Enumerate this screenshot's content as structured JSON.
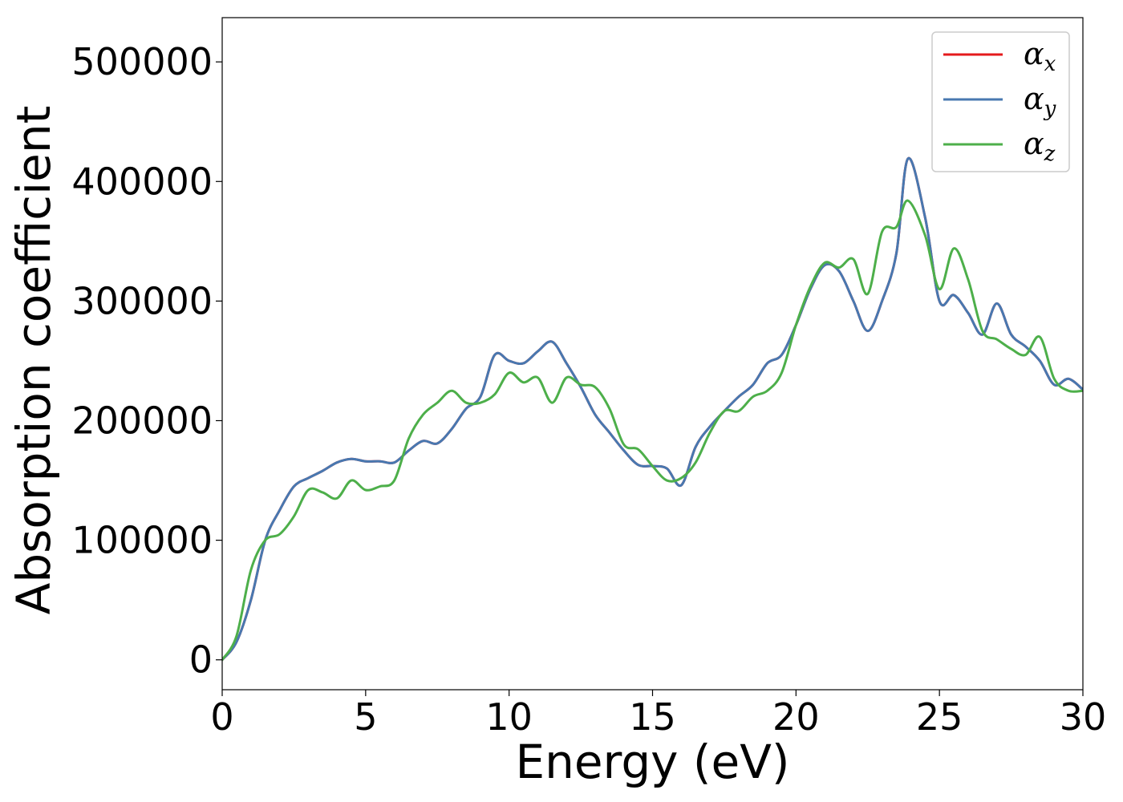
{
  "chart_data": {
    "type": "line",
    "title": "",
    "xlabel": "Energy (eV)",
    "ylabel": "Absorption coefficient",
    "xlim": [
      0,
      30
    ],
    "ylim": [
      -25000,
      537000
    ],
    "xticks": [
      0,
      5,
      10,
      15,
      20,
      25,
      30
    ],
    "yticks": [
      0,
      100000,
      200000,
      300000,
      400000,
      500000
    ],
    "xtick_labels": [
      "0",
      "5",
      "10",
      "15",
      "20",
      "25",
      "30"
    ],
    "ytick_labels": [
      "0",
      "100000",
      "200000",
      "300000",
      "400000",
      "500000"
    ],
    "grid": false,
    "legend_position": "top-right",
    "series": [
      {
        "name": "α",
        "subscript": "x",
        "color": "#e41a1c",
        "x": [
          0,
          0.5,
          1.0,
          1.5,
          2.0,
          2.5,
          3.0,
          3.5,
          4.0,
          4.5,
          5.0,
          5.5,
          6.0,
          6.5,
          7.0,
          7.5,
          8.0,
          8.5,
          9.0,
          9.5,
          10.0,
          10.5,
          11.0,
          11.5,
          12.0,
          12.5,
          13.0,
          13.5,
          14.0,
          14.5,
          15.0,
          15.5,
          16.0,
          16.5,
          17.0,
          17.5,
          18.0,
          18.5,
          19.0,
          19.5,
          20.0,
          20.5,
          21.0,
          21.5,
          22.0,
          22.5,
          23.0,
          23.5,
          23.9,
          24.5,
          25.0,
          25.5,
          26.0,
          26.5,
          27.0,
          27.5,
          28.0,
          28.5,
          29.0,
          29.5,
          30.0
        ],
        "y": [
          0,
          15000,
          50000,
          100000,
          125000,
          145000,
          152000,
          158000,
          165000,
          168000,
          166000,
          166000,
          165000,
          175000,
          183000,
          181000,
          193000,
          210000,
          220000,
          255000,
          250000,
          248000,
          258000,
          266000,
          248000,
          228000,
          205000,
          190000,
          175000,
          163000,
          162000,
          160000,
          146000,
          178000,
          195000,
          208000,
          220000,
          230000,
          248000,
          255000,
          280000,
          310000,
          330000,
          325000,
          300000,
          275000,
          300000,
          340000,
          419000,
          370000,
          300000,
          305000,
          290000,
          272000,
          298000,
          272000,
          262000,
          250000,
          230000,
          235000,
          226000
        ]
      },
      {
        "name": "α",
        "subscript": "y",
        "color": "#4878b0",
        "x": [
          0,
          0.5,
          1.0,
          1.5,
          2.0,
          2.5,
          3.0,
          3.5,
          4.0,
          4.5,
          5.0,
          5.5,
          6.0,
          6.5,
          7.0,
          7.5,
          8.0,
          8.5,
          9.0,
          9.5,
          10.0,
          10.5,
          11.0,
          11.5,
          12.0,
          12.5,
          13.0,
          13.5,
          14.0,
          14.5,
          15.0,
          15.5,
          16.0,
          16.5,
          17.0,
          17.5,
          18.0,
          18.5,
          19.0,
          19.5,
          20.0,
          20.5,
          21.0,
          21.5,
          22.0,
          22.5,
          23.0,
          23.5,
          23.9,
          24.5,
          25.0,
          25.5,
          26.0,
          26.5,
          27.0,
          27.5,
          28.0,
          28.5,
          29.0,
          29.5,
          30.0
        ],
        "y": [
          0,
          15000,
          50000,
          100000,
          125000,
          145000,
          152000,
          158000,
          165000,
          168000,
          166000,
          166000,
          165000,
          175000,
          183000,
          181000,
          193000,
          210000,
          220000,
          255000,
          250000,
          248000,
          258000,
          266000,
          248000,
          228000,
          205000,
          190000,
          175000,
          163000,
          162000,
          160000,
          146000,
          178000,
          195000,
          208000,
          220000,
          230000,
          248000,
          255000,
          280000,
          310000,
          330000,
          325000,
          300000,
          275000,
          300000,
          340000,
          419000,
          370000,
          300000,
          305000,
          290000,
          272000,
          298000,
          272000,
          262000,
          250000,
          230000,
          235000,
          226000
        ]
      },
      {
        "name": "α",
        "subscript": "z",
        "color": "#4daf4a",
        "x": [
          0,
          0.5,
          1.0,
          1.5,
          2.0,
          2.5,
          3.0,
          3.5,
          4.0,
          4.5,
          5.0,
          5.5,
          6.0,
          6.5,
          7.0,
          7.5,
          8.0,
          8.5,
          9.0,
          9.5,
          10.0,
          10.5,
          11.0,
          11.5,
          12.0,
          12.5,
          13.0,
          13.5,
          14.0,
          14.5,
          15.0,
          15.5,
          16.0,
          16.5,
          17.0,
          17.5,
          18.0,
          18.5,
          19.0,
          19.5,
          20.0,
          20.5,
          21.0,
          21.5,
          22.0,
          22.5,
          23.0,
          23.5,
          23.9,
          24.5,
          25.0,
          25.5,
          26.0,
          26.5,
          27.0,
          27.5,
          28.0,
          28.5,
          29.0,
          29.5,
          30.0
        ],
        "y": [
          0,
          20000,
          75000,
          100000,
          105000,
          120000,
          142000,
          140000,
          135000,
          150000,
          142000,
          145000,
          150000,
          185000,
          205000,
          215000,
          225000,
          215000,
          215000,
          222000,
          240000,
          232000,
          236000,
          215000,
          236000,
          230000,
          228000,
          210000,
          180000,
          176000,
          162000,
          150000,
          152000,
          165000,
          190000,
          208000,
          208000,
          220000,
          225000,
          240000,
          280000,
          312000,
          332000,
          328000,
          335000,
          306000,
          358000,
          362000,
          384000,
          355000,
          310000,
          344000,
          318000,
          275000,
          268000,
          260000,
          255000,
          270000,
          235000,
          225000,
          225000
        ]
      }
    ]
  }
}
